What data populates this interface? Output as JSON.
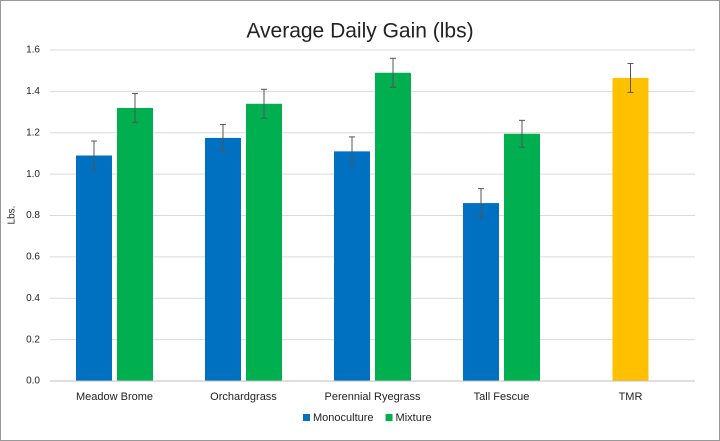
{
  "chart_data": {
    "type": "bar",
    "title": "Average Daily Gain (lbs)",
    "y_label": "Lbs.",
    "categories": [
      "Meadow Brome",
      "Orchardgrass",
      "Perennial Ryegrass",
      "Tall Fescue",
      "TMR"
    ],
    "series": [
      {
        "name": "Monoculture",
        "color": "#0070c0",
        "values": [
          1.09,
          1.175,
          1.11,
          0.86,
          null
        ],
        "errors": [
          0.07,
          0.065,
          0.07,
          0.07,
          null
        ]
      },
      {
        "name": "Mixture",
        "color": "#00b050",
        "bar_colors": [
          "#00b050",
          "#00b050",
          "#00b050",
          "#00b050",
          "#ffc000"
        ],
        "values": [
          1.32,
          1.34,
          1.49,
          1.195,
          1.465
        ],
        "errors": [
          0.07,
          0.07,
          0.07,
          0.065,
          0.07
        ]
      }
    ],
    "ylim": [
      0,
      1.6
    ],
    "yticks": [
      {
        "value": 0,
        "label": "0.0"
      },
      0.2,
      0.4,
      0.6,
      0.8,
      {
        "value": 1,
        "label": "1.0"
      },
      1.2,
      1.4,
      1.6
    ],
    "grid": true,
    "legend": "bottom"
  }
}
